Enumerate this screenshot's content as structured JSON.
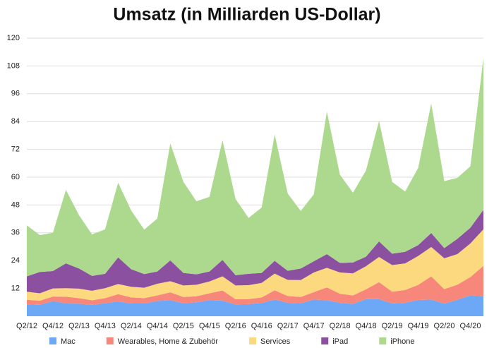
{
  "chart_data": {
    "type": "stacked_area",
    "title": "Umsatz (in Milliarden US-Dollar)",
    "categories": [
      "Q2/12",
      null,
      "Q4/12",
      null,
      "Q2/13",
      null,
      "Q4/13",
      null,
      "Q2/14",
      null,
      "Q4/14",
      null,
      "Q2/15",
      null,
      "Q4/15",
      null,
      "Q2/16",
      null,
      "Q4/16",
      null,
      "Q2/17",
      null,
      "Q4/17",
      null,
      "Q2/18",
      null,
      "Q4/18",
      null,
      "Q2/19",
      null,
      "Q4/19",
      null,
      "Q2/20",
      null,
      "Q4/20",
      null
    ],
    "series": [
      {
        "name": "Mac",
        "color": "#6ca8f6",
        "values": [
          5.1,
          4.9,
          6.6,
          5.5,
          5.4,
          4.9,
          5.6,
          6.4,
          5.5,
          5.5,
          6.6,
          6.9,
          5.6,
          6.0,
          6.9,
          6.7,
          5.1,
          5.2,
          5.7,
          7.2,
          5.8,
          5.6,
          7.2,
          6.9,
          5.8,
          5.3,
          7.4,
          7.4,
          5.5,
          5.8,
          7.0,
          7.2,
          5.4,
          7.1,
          9.0,
          8.7
        ]
      },
      {
        "name": "Wearables, Home & Zubehör",
        "color": "#f7877a",
        "values": [
          2.0,
          1.8,
          1.9,
          2.9,
          2.4,
          2.0,
          2.2,
          3.1,
          2.6,
          2.3,
          2.4,
          3.4,
          2.7,
          2.6,
          3.0,
          4.4,
          2.2,
          2.2,
          2.4,
          4.0,
          2.9,
          2.7,
          3.2,
          5.5,
          3.9,
          3.7,
          4.2,
          7.3,
          5.1,
          5.5,
          6.5,
          10.0,
          6.3,
          6.5,
          7.9,
          13.0
        ]
      },
      {
        "name": "Services",
        "color": "#fcd87f",
        "values": [
          3.5,
          3.2,
          3.5,
          3.7,
          4.1,
          4.1,
          4.3,
          4.4,
          4.6,
          4.5,
          5.0,
          4.8,
          5.0,
          5.0,
          5.1,
          6.1,
          6.0,
          6.0,
          6.3,
          7.2,
          7.0,
          7.3,
          8.5,
          8.5,
          9.2,
          9.5,
          10.0,
          10.9,
          11.5,
          11.5,
          12.5,
          12.7,
          13.3,
          13.2,
          14.5,
          15.8
        ]
      },
      {
        "name": "iPad",
        "color": "#8b509f",
        "values": [
          6.6,
          9.2,
          7.5,
          10.7,
          8.7,
          6.4,
          6.2,
          11.5,
          7.6,
          5.9,
          5.3,
          9.0,
          5.4,
          4.5,
          4.3,
          7.1,
          4.4,
          4.9,
          4.3,
          5.5,
          3.9,
          5.0,
          4.8,
          5.9,
          4.1,
          4.7,
          4.1,
          6.7,
          4.9,
          5.0,
          4.7,
          6.0,
          4.4,
          6.6,
          6.8,
          8.4
        ]
      },
      {
        "name": "iPhone",
        "color": "#acd98d",
        "values": [
          22.0,
          15.9,
          16.5,
          31.7,
          23.0,
          17.9,
          19.2,
          32.2,
          25.3,
          19.2,
          22.8,
          50.5,
          39.3,
          31.5,
          32.2,
          51.6,
          32.9,
          24.1,
          28.2,
          54.5,
          33.3,
          24.8,
          28.9,
          61.5,
          38.1,
          30.1,
          37.2,
          52.0,
          31.0,
          26.0,
          33.3,
          55.9,
          28.9,
          26.3,
          26.5,
          65.5
        ]
      }
    ],
    "ylim": [
      0,
      120
    ],
    "yticks": [
      12,
      24,
      36,
      48,
      60,
      72,
      84,
      96,
      108,
      120
    ],
    "grid": true
  }
}
